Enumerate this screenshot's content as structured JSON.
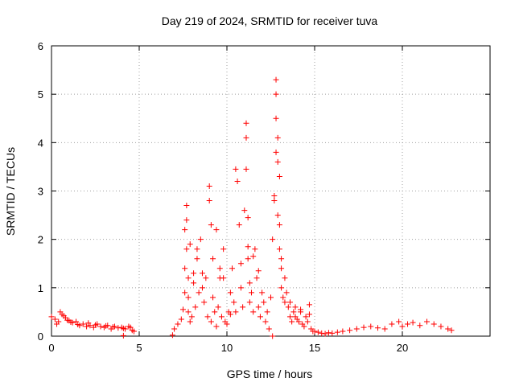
{
  "chart_data": {
    "type": "scatter",
    "title": "Day 219 of 2024, SRMTID for receiver tuva",
    "xlabel": "GPS time / hours",
    "ylabel": "SRMTID / TECUs",
    "xlim": [
      0,
      25
    ],
    "ylim": [
      0,
      6
    ],
    "xticks": [
      0,
      5,
      10,
      15,
      20
    ],
    "yticks": [
      0,
      1,
      2,
      3,
      4,
      5,
      6
    ],
    "grid": true,
    "marker": "plus",
    "series": [
      {
        "name": "SRMTID",
        "color": "#ff0000",
        "x": [
          0.0,
          0.2,
          0.4,
          0.6,
          0.8,
          1.0,
          1.2,
          1.4,
          1.6,
          1.8,
          2.0,
          2.2,
          2.4,
          2.6,
          2.8,
          3.0,
          3.2,
          3.4,
          3.6,
          3.8,
          4.0,
          4.2,
          4.4,
          4.6,
          4.7,
          0.3,
          0.5,
          0.7,
          0.9,
          1.1,
          1.5,
          2.1,
          2.5,
          3.1,
          3.5,
          4.1,
          4.5,
          4.1,
          6.9,
          7.0,
          7.2,
          7.4,
          7.5,
          7.6,
          7.6,
          7.7,
          7.7,
          7.7,
          7.8,
          7.8,
          7.8,
          7.9,
          8.0,
          8.1,
          8.2,
          8.3,
          8.4,
          8.5,
          8.6,
          8.7,
          8.8,
          8.9,
          9.0,
          9.0,
          9.1,
          9.1,
          9.2,
          9.2,
          9.3,
          9.4,
          9.5,
          9.6,
          9.7,
          9.8,
          9.9,
          10.0,
          10.1,
          10.2,
          10.3,
          10.4,
          10.5,
          10.6,
          10.7,
          10.8,
          10.9,
          11.0,
          11.1,
          11.1,
          11.1,
          11.2,
          11.2,
          11.3,
          11.3,
          11.4,
          11.5,
          11.6,
          11.7,
          11.8,
          11.9,
          12.0,
          12.1,
          12.2,
          12.3,
          12.4,
          12.5,
          12.6,
          12.7,
          12.8,
          12.8,
          12.8,
          12.9,
          12.9,
          13.0,
          13.0,
          13.1,
          13.1,
          13.2,
          13.3,
          13.4,
          13.5,
          13.6,
          13.7,
          13.8,
          13.9,
          14.0,
          14.1,
          14.2,
          14.3,
          14.4,
          14.5,
          14.6,
          14.7,
          14.8,
          14.9,
          15.0,
          15.2,
          15.4,
          15.6,
          15.8,
          16.0,
          16.3,
          16.6,
          17.0,
          17.4,
          17.8,
          18.2,
          18.6,
          19.0,
          19.4,
          19.8,
          20.0,
          20.3,
          20.6,
          21.0,
          21.4,
          21.8,
          22.2,
          22.6,
          22.8,
          12.8,
          12.9,
          13.0,
          12.7,
          13.1,
          11.8,
          11.5,
          11.2,
          10.8,
          9.6,
          9.4,
          8.6,
          8.3,
          8.1,
          7.9,
          7.6,
          12.6,
          13.3,
          13.6,
          13.9,
          14.2,
          14.7,
          10.5,
          10.2,
          9.8
        ],
        "y": [
          0.4,
          0.35,
          0.3,
          0.45,
          0.38,
          0.32,
          0.28,
          0.3,
          0.22,
          0.25,
          0.2,
          0.22,
          0.18,
          0.25,
          0.2,
          0.18,
          0.22,
          0.15,
          0.2,
          0.17,
          0.18,
          0.15,
          0.2,
          0.12,
          0.1,
          0.25,
          0.5,
          0.42,
          0.33,
          0.29,
          0.24,
          0.27,
          0.23,
          0.21,
          0.19,
          0.16,
          0.18,
          0.01,
          0.02,
          0.15,
          0.25,
          0.35,
          0.55,
          0.9,
          1.4,
          2.7,
          2.4,
          1.8,
          1.2,
          0.8,
          0.5,
          0.3,
          0.4,
          1.1,
          0.6,
          1.8,
          0.9,
          2.0,
          1.3,
          0.7,
          1.2,
          0.4,
          3.1,
          2.8,
          0.3,
          2.3,
          0.8,
          1.6,
          0.5,
          0.2,
          0.6,
          1.2,
          0.4,
          1.8,
          0.3,
          0.25,
          0.5,
          0.9,
          1.4,
          0.7,
          3.45,
          3.2,
          2.3,
          1.0,
          0.6,
          2.6,
          4.4,
          4.1,
          3.45,
          2.45,
          1.6,
          1.1,
          0.7,
          0.9,
          0.5,
          1.8,
          1.2,
          0.6,
          0.4,
          0.9,
          0.7,
          0.3,
          0.5,
          0.15,
          0.8,
          2.0,
          2.8,
          5.3,
          4.5,
          3.8,
          3.6,
          2.5,
          2.3,
          1.8,
          1.4,
          1.0,
          0.8,
          0.7,
          0.9,
          0.6,
          0.4,
          0.3,
          0.5,
          0.4,
          0.35,
          0.3,
          0.5,
          0.25,
          0.2,
          0.4,
          0.3,
          0.45,
          0.15,
          0.1,
          0.1,
          0.08,
          0.06,
          0.05,
          0.07,
          0.06,
          0.08,
          0.1,
          0.12,
          0.15,
          0.18,
          0.2,
          0.17,
          0.15,
          0.25,
          0.3,
          0.2,
          0.25,
          0.28,
          0.22,
          0.3,
          0.25,
          0.2,
          0.15,
          0.12,
          5.0,
          4.1,
          3.3,
          2.9,
          1.6,
          1.35,
          1.65,
          1.85,
          1.5,
          1.4,
          2.2,
          1.0,
          1.6,
          1.3,
          1.9,
          2.2,
          0.0,
          1.2,
          0.7,
          0.6,
          0.55,
          0.65,
          0.5,
          0.45,
          1.2
        ]
      }
    ]
  }
}
